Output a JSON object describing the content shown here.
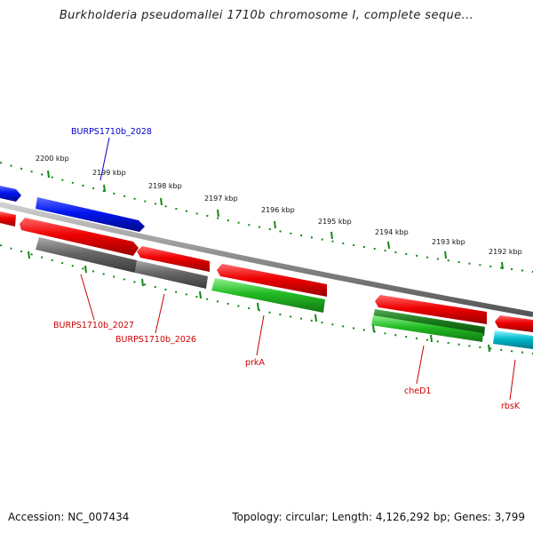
{
  "title": "Burkholderia pseudomallei 1710b chromosome I, complete seque...",
  "footer": {
    "accession": "Accession: NC_007434",
    "summary": "Topology: circular; Length: 4,126,292 bp; Genes: 3,799"
  },
  "ticks": [
    "2200 kbp",
    "2199 kbp",
    "2198 kbp",
    "2197 kbp",
    "2196 kbp",
    "2195 kbp",
    "2194 kbp",
    "2193 kbp",
    "2192 kbp"
  ],
  "genes": [
    {
      "label": "BURPS1710b_2028",
      "color": "#0000cc"
    },
    {
      "label": "BURPS1710b_2027",
      "color": "#cc0000"
    },
    {
      "label": "BURPS1710b_2026",
      "color": "#cc0000"
    },
    {
      "label": "prkA",
      "color": "#cc0000"
    },
    {
      "label": "cheD1",
      "color": "#cc0000"
    },
    {
      "label": "rbsK",
      "color": "#cc0000"
    }
  ],
  "colors": {
    "forward_strand": "#0022ee",
    "cds_red": "#ee0000",
    "cds_green": "#22bb22",
    "cds_gray": "#666666",
    "cds_cyan": "#00bbcc",
    "backbone": "#777777",
    "scale_dots": "#118811"
  }
}
